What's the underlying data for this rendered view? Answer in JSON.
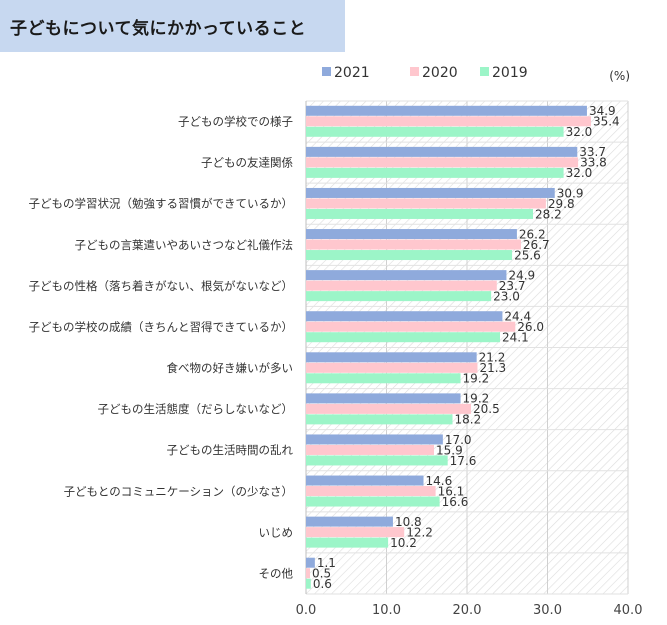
{
  "chart_data": {
    "type": "bar",
    "orientation": "horizontal",
    "title": "子どもについて気にかかっていること",
    "unit": "(%)",
    "categories": [
      "子どもの学校での様子",
      "子どもの友達関係",
      "子どもの学習状況（勉強する習慣ができているか）",
      "子どもの言葉遣いやあいさつなど礼儀作法",
      "子どもの性格（落ち着きがない、根気がないなど）",
      "子どもの学校の成績（きちんと習得できているか）",
      "食べ物の好き嫌いが多い",
      "子どもの生活態度（だらしないなど）",
      "子どもの生活時間の乱れ",
      "子どもとのコミュニケーション（の少なさ）",
      "いじめ",
      "その他"
    ],
    "series": [
      {
        "name": "2021",
        "color": "#8faadc",
        "values": [
          34.9,
          33.7,
          30.9,
          26.2,
          24.9,
          24.4,
          21.2,
          19.2,
          17.0,
          14.6,
          10.8,
          1.1
        ]
      },
      {
        "name": "2020",
        "color": "#ffc7ce",
        "values": [
          35.4,
          33.8,
          29.8,
          26.7,
          23.7,
          26.0,
          21.3,
          20.5,
          15.9,
          16.1,
          12.2,
          0.5
        ]
      },
      {
        "name": "2019",
        "color": "#9cf5c8",
        "values": [
          32.0,
          32.0,
          28.2,
          25.6,
          23.0,
          24.1,
          19.2,
          18.2,
          17.6,
          16.6,
          10.2,
          0.6
        ]
      }
    ],
    "xlim": [
      0,
      40
    ],
    "xticks": [
      "0.0",
      "10.0",
      "20.0",
      "30.0",
      "40.0"
    ],
    "legend": "top",
    "grid": true
  }
}
